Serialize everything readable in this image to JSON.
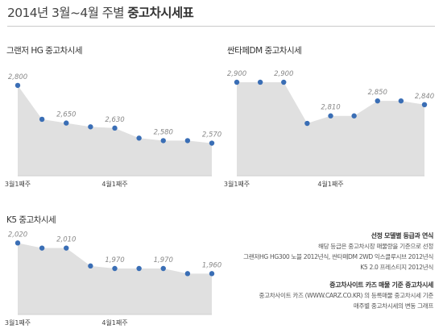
{
  "page": {
    "title_prefix": "2014년 3월~4월 주별",
    "title_bold": "중고차시세표"
  },
  "colors": {
    "area_fill": "#e0e0e0",
    "marker": "#3a6eb5",
    "value_label": "#888888",
    "axis_label": "#444444"
  },
  "chart_data": [
    {
      "type": "area",
      "title": "그랜저 HG 중고차시세",
      "x": [
        "3월1째주",
        "",
        "",
        "",
        "4월1째주",
        "",
        "",
        "",
        ""
      ],
      "x_tick_labels": [
        "3월1째주",
        "4월1째주"
      ],
      "values": [
        2800,
        2665,
        2650,
        2635,
        2630,
        2590,
        2580,
        2580,
        2570
      ],
      "data_labels": [
        {
          "index": 0,
          "text": "2,800"
        },
        {
          "index": 2,
          "text": "2,650"
        },
        {
          "index": 4,
          "text": "2,630"
        },
        {
          "index": 6,
          "text": "2,580"
        },
        {
          "index": 8,
          "text": "2,570"
        }
      ],
      "ylim": [
        2440,
        2835
      ],
      "grid": false
    },
    {
      "type": "area",
      "title": "싼타페DM 중고차시세",
      "x": [
        "3월1째주",
        "",
        "",
        "",
        "4월1째주",
        "",
        "",
        "",
        ""
      ],
      "x_tick_labels": [
        "3월1째주",
        "4월1째주"
      ],
      "values": [
        2900,
        2900,
        2900,
        2790,
        2810,
        2810,
        2850,
        2850,
        2840
      ],
      "data_labels": [
        {
          "index": 0,
          "text": "2,900"
        },
        {
          "index": 2,
          "text": "2,900"
        },
        {
          "index": 4,
          "text": "2,810"
        },
        {
          "index": 6,
          "text": "2,850"
        },
        {
          "index": 8,
          "text": "2,840"
        }
      ],
      "ylim": [
        2650,
        2915
      ],
      "grid": false
    },
    {
      "type": "area",
      "title": "K5 중고차시세",
      "x": [
        "3월1째주",
        "",
        "",
        "",
        "4월1째주",
        "",
        "",
        "",
        ""
      ],
      "x_tick_labels": [
        "3월1째주",
        "4월1째주"
      ],
      "values": [
        2020,
        2010,
        2010,
        1975,
        1970,
        1970,
        1970,
        1960,
        1960
      ],
      "data_labels": [
        {
          "index": 0,
          "text": "2,020"
        },
        {
          "index": 2,
          "text": "2,010"
        },
        {
          "index": 4,
          "text": "1,970"
        },
        {
          "index": 6,
          "text": "1,970"
        },
        {
          "index": 8,
          "text": "1,960"
        }
      ],
      "ylim": [
        1880,
        2030
      ],
      "grid": false
    }
  ],
  "notes": {
    "section1_title": "선정 모델별 등급과 연식",
    "section1_lines": [
      "해당 등급은 중고차시장 매물량을 기준으로 선정",
      "그랜저HG HG300 노블 2012년식, 싼타페DM 2WD 익스클루시브 2012년식",
      "K5 2.0 프레스티지 2012년식"
    ],
    "section2_title": "중고차사이트 카즈 매물 기준 중고차시세",
    "section2_lines": [
      "중고차사이트 카즈 (WWW.CARZ.CO.KR) 의 등록매물 중고차시세 기준",
      "매주별 중고차시세의 변동 그래프"
    ]
  }
}
